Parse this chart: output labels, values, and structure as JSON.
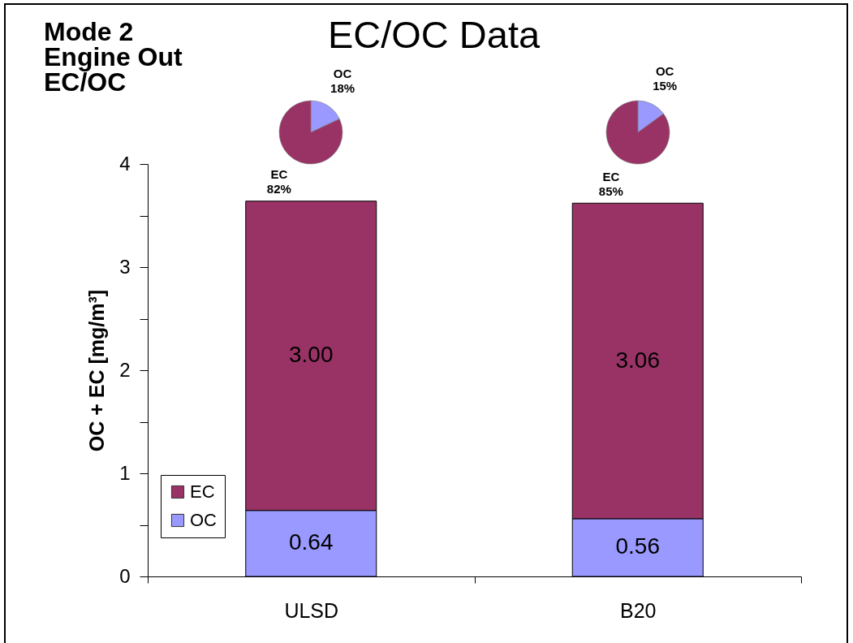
{
  "chart_data": [
    {
      "type": "bar",
      "title": "EC/OC Data",
      "annotations": [
        "Mode 2",
        "Engine Out",
        "EC/OC"
      ],
      "ylabel": "OC + EC [mg/m³]",
      "categories": [
        "ULSD",
        "B20"
      ],
      "stacked": true,
      "series": [
        {
          "name": "OC",
          "color": "#9999ff",
          "values": [
            0.64,
            0.56
          ],
          "value_labels": [
            "0.64",
            "0.56"
          ]
        },
        {
          "name": "EC",
          "color": "#993366",
          "values": [
            3.0,
            3.06
          ],
          "value_labels": [
            "3.00",
            "3.06"
          ]
        }
      ],
      "ylim": [
        0,
        4
      ],
      "yticks": [
        0,
        {
          "value": 0.5,
          "label": null
        },
        1,
        {
          "value": 1.5,
          "label": null
        },
        2,
        {
          "value": 2.5,
          "label": null
        },
        3,
        {
          "value": 3.5,
          "label": null
        },
        4
      ],
      "legend": "bottom left"
    },
    {
      "type": "pie",
      "categories": [
        "OC",
        "EC"
      ],
      "values": [
        18,
        82
      ],
      "value_labels": [
        "18%",
        "82%"
      ],
      "colors": [
        "#9999ff",
        "#993366"
      ]
    },
    {
      "type": "pie",
      "categories": [
        "OC",
        "EC"
      ],
      "values": [
        15,
        85
      ],
      "value_labels": [
        "15%",
        "85%"
      ],
      "colors": [
        "#9999ff",
        "#993366"
      ]
    }
  ]
}
